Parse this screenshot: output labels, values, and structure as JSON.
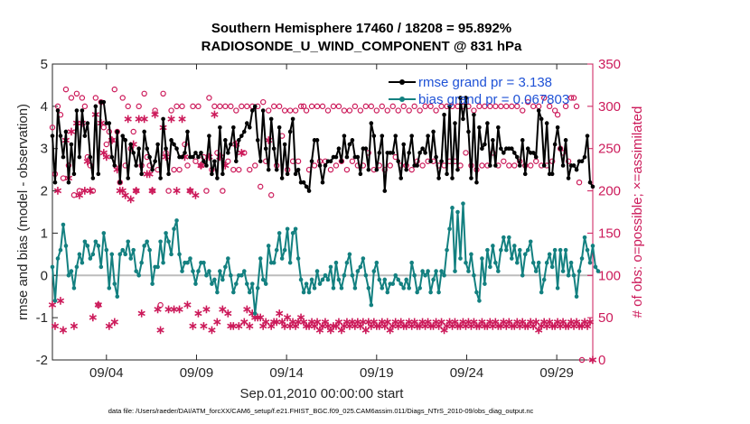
{
  "chart_data": {
    "type": "line",
    "title": "Southern Hemisphere 17460 / 18208 = 95.892%",
    "subtitle": "RADIOSONDE_U_WIND_COMPONENT @ 831 hPa",
    "xlabel": "Sep.01,2010 00:00:00 start",
    "ylabel": "rmse and bias (model - observation)",
    "y2label": "# of obs: o=possible; ×=assimilated",
    "footnote": "data file: /Users/raeder/DAI/ATM_forcXX/CAM6_setup/f.e21.FHIST_BGC.f09_025.CAM6assim.011/Diags_NTrS_2010-09/obs_diag_output.nc",
    "xlim": [
      0.5,
      30.5
    ],
    "ylim": [
      -2,
      5
    ],
    "y2lim": [
      0,
      350
    ],
    "x_ticks": [
      3.5,
      8.5,
      13.5,
      18.5,
      23.5,
      28.5
    ],
    "x_tick_labels": [
      "09/04",
      "09/09",
      "09/14",
      "09/19",
      "09/24",
      "09/29"
    ],
    "y_ticks": [
      "-2",
      "-1",
      "0",
      "1",
      "2",
      "3",
      "4",
      "5"
    ],
    "y2_ticks": [
      "0",
      "50",
      "100",
      "150",
      "200",
      "250",
      "300",
      "350"
    ],
    "legend": [
      {
        "label": "rmse grand pr = 3.138",
        "color": "#000000"
      },
      {
        "label": "bias grand pr = 0.067803",
        "color": "#138080"
      }
    ],
    "rmse": [
      3.3,
      2.2,
      3.9,
      3.3,
      2.8,
      3.4,
      2.2,
      3.1,
      2.4,
      3.9,
      2.8,
      3.9,
      3.3,
      3.6,
      2.8,
      2.3,
      4.0,
      2.4,
      4.1,
      4.1,
      3.6,
      3.6,
      2.8,
      2.6,
      3.4,
      2.2,
      3.3,
      3.2,
      2.3,
      3.1,
      2.9,
      2.6,
      3.0,
      2.4,
      3.4,
      3.0,
      2.8,
      2.5,
      2.7,
      3.1,
      2.3,
      3.7,
      3.0,
      2.4,
      3.2,
      3.1,
      3.0,
      2.8,
      2.8,
      2.9,
      3.4,
      2.8,
      2.8,
      2.9,
      2.8,
      2.9,
      2.7,
      2.6,
      3.3,
      2.4,
      2.7,
      2.3,
      3.5,
      2.4,
      3.2,
      2.9,
      3.1,
      3.5,
      2.7,
      3.2,
      3.3,
      3.4,
      3.6,
      3.5,
      3.9,
      4.0,
      3.2,
      2.7,
      3.9,
      3.0,
      2.5,
      3.7,
      3.0,
      2.5,
      3.5,
      2.3,
      3.1,
      2.4,
      3.4,
      3.7,
      2.4,
      2.5,
      2.2,
      2.2,
      2.1,
      2.0,
      2.7,
      3.2,
      3.2,
      2.6,
      2.2,
      2.6,
      2.7,
      2.7,
      2.8,
      2.8,
      3.0,
      2.7,
      3.3,
      2.8,
      3.1,
      3.2,
      2.8,
      2.8,
      2.4,
      3.0,
      3.0,
      2.5,
      3.6,
      3.3,
      2.5,
      2.9,
      3.3,
      2.0,
      2.9,
      2.9,
      2.9,
      3.3,
      2.7,
      2.3,
      3.1,
      2.5,
      2.9,
      3.3,
      2.6,
      2.6,
      2.9,
      3.0,
      2.9,
      3.3,
      2.7,
      3.4,
      2.8,
      2.3,
      2.7,
      3.8,
      2.4,
      4.0,
      2.3,
      3.6,
      2.5,
      4.2,
      3.7,
      4.2,
      3.4,
      2.3,
      3.8,
      2.2,
      3.5,
      3.0,
      3.1,
      3.6,
      2.6,
      3.2,
      2.6,
      3.5,
      3.0,
      2.9,
      3.0,
      3.0,
      3.0,
      2.9,
      2.8,
      2.6,
      3.2,
      2.4,
      3.0,
      2.9,
      2.9,
      2.8,
      3.9,
      3.7,
      2.6,
      3.6,
      2.4,
      2.4,
      3.1,
      3.5,
      3.0,
      2.6,
      3.2,
      2.3,
      2.6,
      2.6,
      2.5,
      2.7,
      2.7,
      2.8,
      3.3,
      2.2,
      2.1
    ],
    "bias": [
      0.2,
      -0.6,
      0.4,
      0.6,
      1.2,
      0.7,
      0.0,
      0.1,
      -0.3,
      0.2,
      0.5,
      0.3,
      0.8,
      0.7,
      0.4,
      0.5,
      0.8,
      0.7,
      0.2,
      1.0,
      0.6,
      -0.3,
      0.5,
      -0.2,
      -0.5,
      0.5,
      0.6,
      0.5,
      0.8,
      0.4,
      0.6,
      0.1,
      0.0,
      0.3,
      0.7,
      0.8,
      0.6,
      -0.2,
      0.2,
      0.2,
      0.8,
      0.3,
      1.0,
      0.8,
      0.5,
      1.1,
      1.3,
      0.5,
      0.1,
      0.3,
      0.3,
      0.4,
      0.1,
      -0.2,
      0.1,
      0.3,
      0.3,
      0.0,
      0.1,
      -0.2,
      -0.1,
      -0.4,
      0.1,
      -0.1,
      0.2,
      0.4,
      0.0,
      -0.4,
      -0.2,
      0.0,
      0.0,
      0.1,
      -0.2,
      -0.4,
      -0.2,
      -0.9,
      -0.3,
      0.4,
      -0.1,
      -0.2,
      0.7,
      0.3,
      0.3,
      0.6,
      1.0,
      0.4,
      0.6,
      1.1,
      0.3,
      1.0,
      1.1,
      0.4,
      -0.1,
      -0.4,
      -0.2,
      -0.4,
      -0.1,
      -0.3,
      0.1,
      -0.2,
      -0.1,
      0.0,
      -0.1,
      0.2,
      -0.3,
      0.3,
      -0.1,
      -0.3,
      0.0,
      0.3,
      0.5,
      0.0,
      -0.3,
      0.1,
      0.2,
      0.4,
      0.0,
      -0.3,
      -0.7,
      0.1,
      0.3,
      -0.1,
      -0.3,
      -0.1,
      -0.4,
      -0.2,
      -0.2,
      0.0,
      -0.1,
      -0.2,
      -0.3,
      -0.1,
      -0.3,
      0.3,
      0.0,
      -0.4,
      -0.3,
      0.1,
      0.0,
      0.1,
      -0.4,
      -0.1,
      0.1,
      -0.4,
      0.1,
      0.0,
      0.6,
      1.1,
      1.6,
      0.1,
      1.5,
      0.4,
      1.7,
      0.3,
      0.1,
      0.5,
      0.0,
      -0.4,
      -0.6,
      0.4,
      -0.2,
      0.6,
      0.2,
      0.7,
      0.3,
      0.1,
      0.6,
      0.9,
      0.6,
      0.9,
      0.4,
      0.7,
      0.3,
      0.6,
      0.0,
      0.5,
      0.6,
      0.8,
      0.3,
      0.1,
      0.3,
      -0.4,
      -0.1,
      0.3,
      0.5,
      0.2,
      0.6,
      -0.3,
      0.6,
      0.1,
      0.6,
      0.0,
      0.3,
      0.0,
      -0.5,
      0.1,
      0.4,
      0.9,
      0.6,
      0.3,
      0.7,
      0.2,
      0.1
    ],
    "obs_possible": [
      275,
      220,
      300,
      290,
      215,
      320,
      230,
      310,
      195,
      315,
      200,
      310,
      300,
      240,
      230,
      200,
      310,
      65,
      305,
      275,
      255,
      270,
      260,
      320,
      270,
      210,
      310,
      230,
      300,
      250,
      270,
      200,
      300,
      230,
      315,
      240,
      230,
      200,
      295,
      225,
      65,
      315,
      245,
      200,
      295,
      225,
      300,
      225,
      300,
      255,
      230,
      200,
      300,
      235,
      300,
      230,
      240,
      200,
      310,
      225,
      300,
      245,
      300,
      200,
      300,
      235,
      300,
      225,
      295,
      225,
      300,
      245,
      300,
      225,
      300,
      230,
      300,
      205,
      305,
      235,
      295,
      195,
      300,
      230,
      300,
      265,
      295,
      225,
      295,
      235,
      295,
      235,
      300,
      300,
      295,
      225,
      300,
      230,
      300,
      235,
      300,
      235,
      295,
      225,
      300,
      230,
      300,
      235,
      295,
      225,
      295,
      235,
      300,
      230,
      295,
      230,
      300,
      245,
      300,
      225,
      295,
      230,
      300,
      225,
      295,
      230,
      300,
      240,
      295,
      230,
      300,
      230,
      295,
      225,
      300,
      235,
      295,
      230,
      300,
      235,
      300,
      235,
      295,
      230,
      300,
      230,
      300,
      235,
      300,
      235,
      300,
      230,
      300,
      245,
      300,
      230,
      295,
      225,
      300,
      230,
      300,
      230,
      300,
      245,
      300,
      230,
      300,
      235,
      300,
      230,
      300,
      230,
      300,
      235,
      295,
      230,
      305,
      230,
      300,
      235,
      300,
      230,
      310,
      230,
      300,
      235,
      295,
      290,
      250,
      245,
      300,
      235,
      310,
      310,
      300,
      210,
      0
    ],
    "obs_assimilated": [
      65,
      40,
      200,
      70,
      35,
      260,
      215,
      270,
      40,
      280,
      195,
      280,
      200,
      235,
      200,
      50,
      290,
      65,
      280,
      245,
      240,
      40,
      260,
      45,
      225,
      200,
      200,
      195,
      285,
      190,
      255,
      200,
      285,
      55,
      285,
      220,
      220,
      200,
      290,
      60,
      35,
      275,
      240,
      60,
      285,
      60,
      200,
      60,
      285,
      240,
      65,
      200,
      40,
      195,
      55,
      230,
      40,
      60,
      240,
      35,
      290,
      45,
      240,
      60,
      230,
      55,
      40,
      40,
      255,
      40,
      245,
      45,
      60,
      40,
      55,
      50,
      50,
      50,
      40,
      45,
      260,
      40,
      45,
      45,
      55,
      45,
      40,
      50,
      40,
      45,
      40,
      45,
      50,
      45,
      40,
      40,
      45,
      40,
      45,
      35,
      40,
      45,
      40,
      35,
      40,
      40,
      45,
      35,
      40,
      45,
      40,
      45,
      40,
      45,
      40,
      45,
      35,
      45,
      40,
      45,
      40,
      40,
      45,
      40,
      45,
      35,
      40,
      45,
      40,
      45,
      40,
      40,
      45,
      40,
      45,
      40,
      40,
      45,
      40,
      45,
      40,
      40,
      45,
      40,
      45,
      35,
      40,
      45,
      40,
      45,
      40,
      40,
      45,
      40,
      45,
      40,
      45,
      40,
      40,
      45,
      40,
      40,
      45,
      40,
      45,
      40,
      40,
      45,
      40,
      45,
      40,
      40,
      45,
      40,
      45,
      40,
      40,
      45,
      40,
      45,
      35,
      40,
      45,
      40,
      45,
      40,
      40,
      45,
      40,
      45,
      40,
      40,
      45,
      40,
      45,
      40,
      40,
      45,
      40,
      45,
      0
    ]
  }
}
